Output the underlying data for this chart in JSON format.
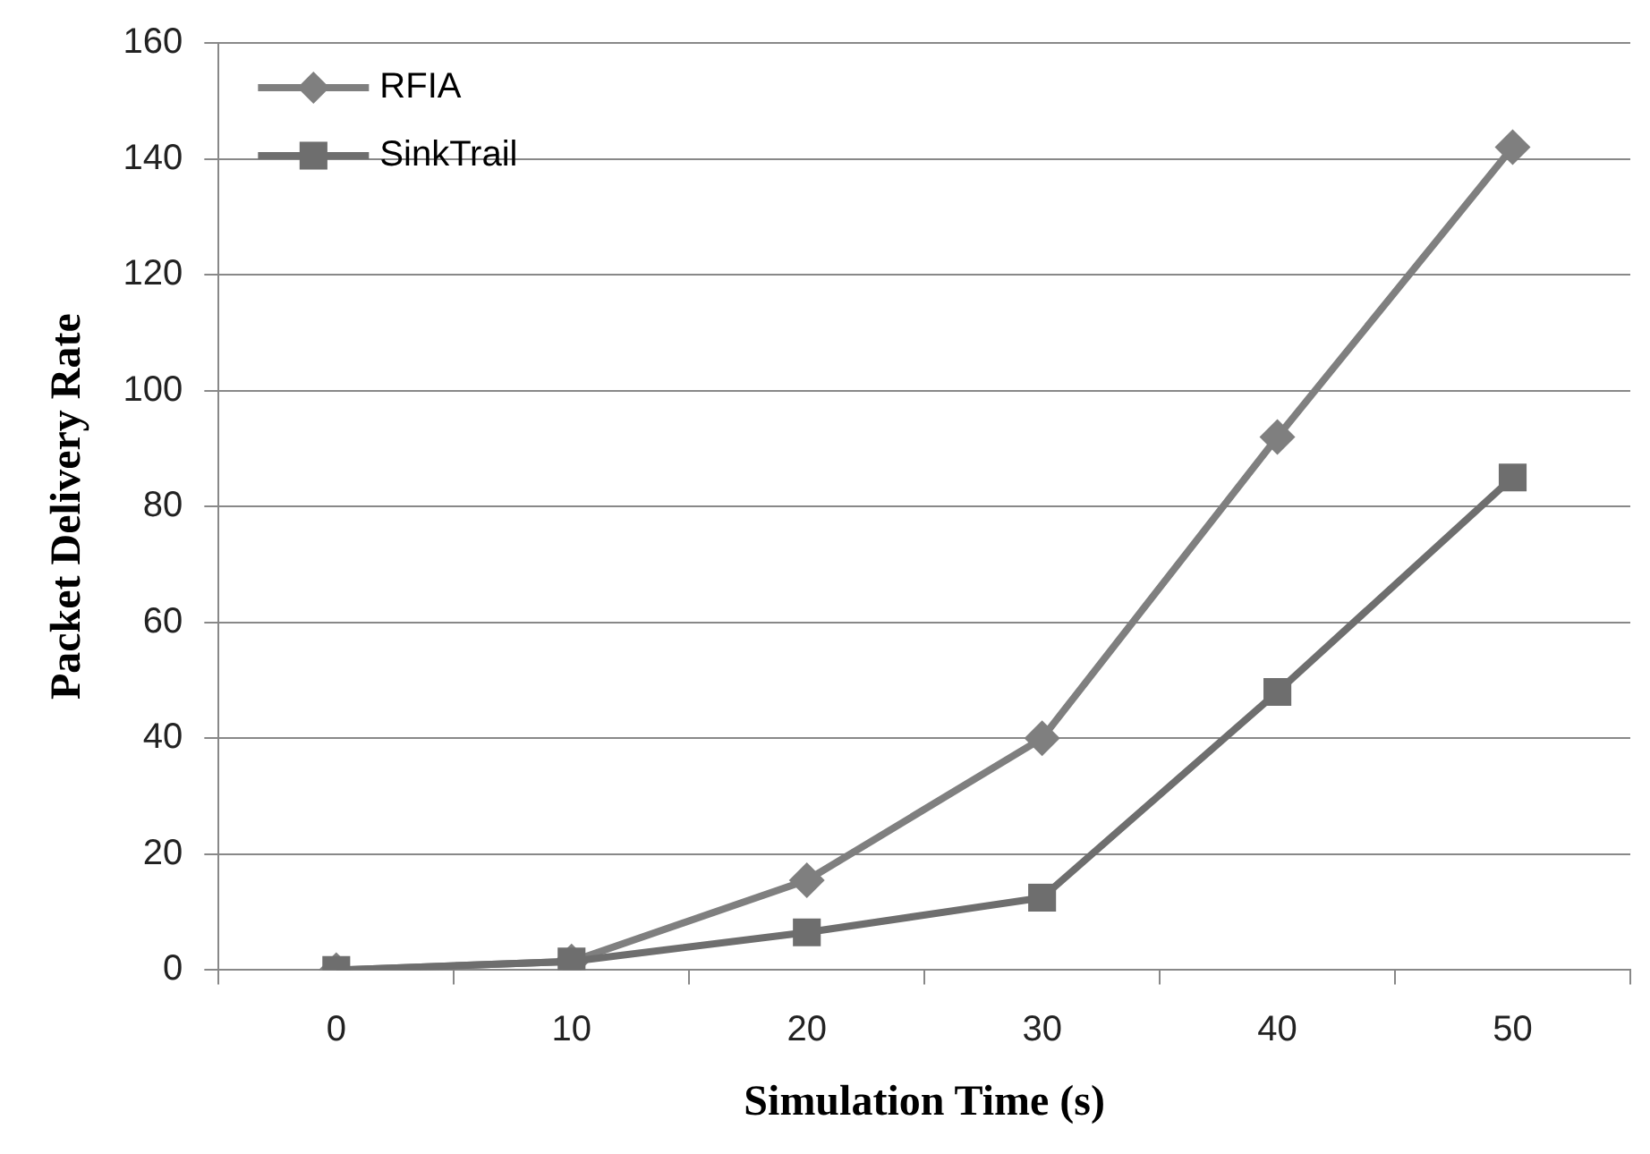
{
  "chart_data": {
    "type": "line",
    "xlabel": "Simulation Time (s)",
    "ylabel": "Packet Delivery Rate",
    "categories": [
      "0",
      "10",
      "20",
      "30",
      "40",
      "50"
    ],
    "series": [
      {
        "name": "RFIA",
        "color": "#7f7f7f",
        "marker": "diamond",
        "values": [
          0,
          1.5,
          15.5,
          40,
          92,
          142
        ]
      },
      {
        "name": "SinkTrail",
        "color": "#6e6e6e",
        "marker": "square",
        "values": [
          0,
          1.5,
          6.5,
          12.5,
          48,
          85
        ]
      }
    ],
    "ylim": [
      0,
      160
    ],
    "yticks": [
      0,
      20,
      40,
      60,
      80,
      100,
      120,
      140,
      160
    ],
    "grid": "y",
    "legend": "top left",
    "line_style": "solid"
  }
}
